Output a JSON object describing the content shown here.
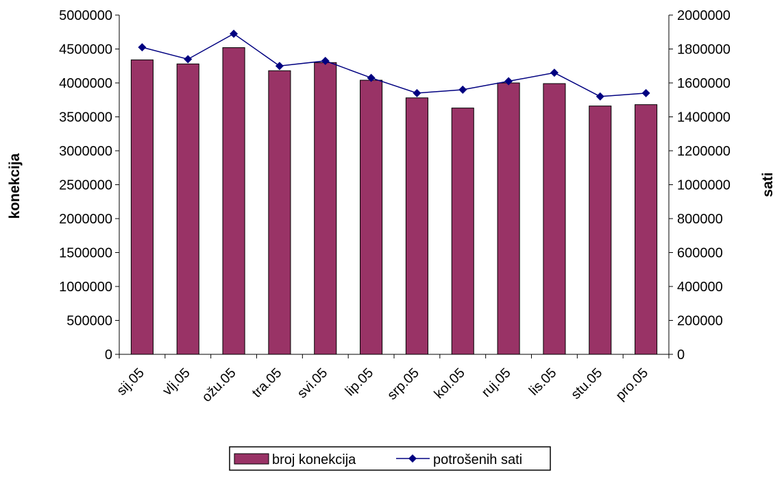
{
  "chart_data": {
    "type": "bar+line",
    "categories": [
      "sij.05",
      "vlj.05",
      "ožu.05",
      "tra.05",
      "svi.05",
      "lip.05",
      "srp.05",
      "kol.05",
      "ruj.05",
      "lis.05",
      "stu.05",
      "pro.05"
    ],
    "series": [
      {
        "name": "broj konekcija",
        "type": "bar",
        "axis": "left",
        "color": "#993366",
        "values": [
          4340000,
          4280000,
          4520000,
          4180000,
          4300000,
          4040000,
          3780000,
          3630000,
          4000000,
          3990000,
          3660000,
          3680000
        ]
      },
      {
        "name": "potrošenih sati",
        "type": "line",
        "axis": "right",
        "color": "#000080",
        "marker": "diamond",
        "values": [
          1810000,
          1740000,
          1890000,
          1700000,
          1730000,
          1630000,
          1540000,
          1560000,
          1610000,
          1660000,
          1520000,
          1540000
        ]
      }
    ],
    "ylabel_left": "konekcija",
    "ylabel_right": "sati",
    "ylim_left": [
      0,
      5000000
    ],
    "ylim_right": [
      0,
      2000000
    ],
    "yticks_left": [
      "0",
      "500000",
      "1000000",
      "1500000",
      "2000000",
      "2500000",
      "3000000",
      "3500000",
      "4000000",
      "4500000",
      "5000000"
    ],
    "yticks_right": [
      "0",
      "200000",
      "400000",
      "600000",
      "800000",
      "1000000",
      "1200000",
      "1400000",
      "1600000",
      "1800000",
      "2000000"
    ],
    "grid": false,
    "legend_position": "bottom"
  }
}
